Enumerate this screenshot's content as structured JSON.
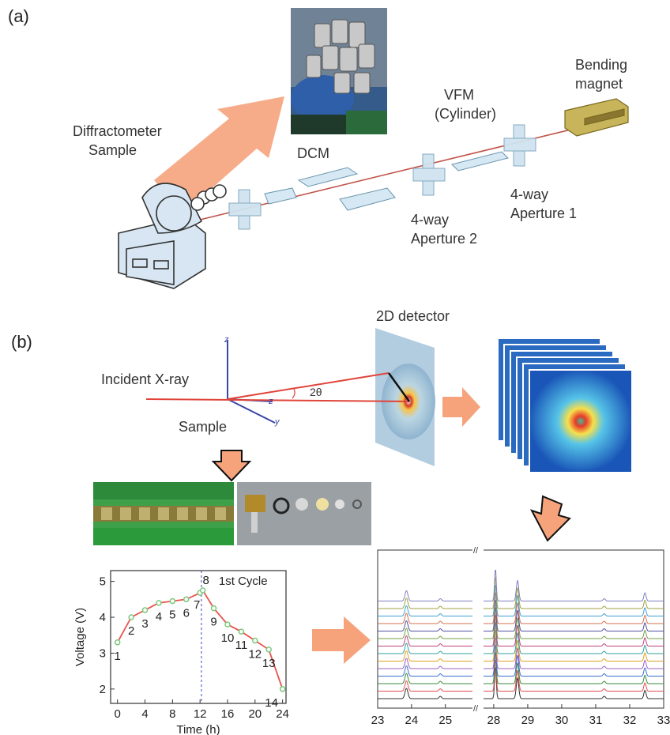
{
  "panel_a": {
    "letter": "(a)",
    "labels": {
      "diffractometer_line1": "Diffractometer",
      "diffractometer_line2": "Sample",
      "dcm": "DCM",
      "vfm_line1": "VFM",
      "vfm_line2": "(Cylinder)",
      "bending_line1": "Bending",
      "bending_line2": "magnet",
      "ap1_line1": "4-way",
      "ap1_line2": "Aperture 1",
      "ap2_line1": "4-way",
      "ap2_line2": "Aperture 2"
    }
  },
  "panel_b": {
    "letter": "(b)",
    "labels": {
      "detector": "2D detector",
      "incident": "Incident X-ray",
      "sample": "Sample",
      "two_theta": "2θ",
      "axis_z1": "z",
      "axis_z2": "z",
      "axis_y": "y"
    }
  },
  "chart_data": [
    {
      "type": "line",
      "title": "1st Cycle",
      "xlabel": "Time (h)",
      "ylabel": "Voltage (V)",
      "xlim": [
        -1,
        24.5
      ],
      "ylim": [
        1.6,
        5.3
      ],
      "xticks": [
        "0",
        "4",
        "8",
        "12",
        "16",
        "20",
        "24"
      ],
      "yticks": [
        "2",
        "3",
        "4",
        "5"
      ],
      "series_color": "#e8554e",
      "marker_color": "#7cc87c",
      "divider_x": 12.2,
      "x": [
        0,
        2,
        4,
        6,
        8,
        10,
        12,
        12.4,
        14,
        16,
        18,
        20,
        22,
        24
      ],
      "y": [
        3.3,
        4.0,
        4.2,
        4.4,
        4.45,
        4.5,
        4.68,
        4.75,
        4.25,
        3.8,
        3.6,
        3.35,
        3.1,
        2.0
      ],
      "point_labels": [
        "1",
        "2",
        "3",
        "4",
        "5",
        "6",
        "7",
        "8",
        "9",
        "10",
        "11",
        "12",
        "13",
        "14"
      ]
    },
    {
      "type": "line",
      "xticks": [
        "23",
        "24",
        "25",
        "28",
        "29",
        "30",
        "31",
        "32",
        "33"
      ],
      "series_count": 14,
      "peaks_2theta": [
        23.85,
        24.85,
        28.05,
        28.7,
        31.25,
        32.45
      ],
      "colors": [
        "#333333",
        "#e05050",
        "#3b8a3b",
        "#3a6fd1",
        "#a060c0",
        "#e0a020",
        "#30a0a0",
        "#c04080",
        "#70a040",
        "#5050a0",
        "#d07050",
        "#40a0d0",
        "#a0a040",
        "#8080c0"
      ]
    }
  ]
}
